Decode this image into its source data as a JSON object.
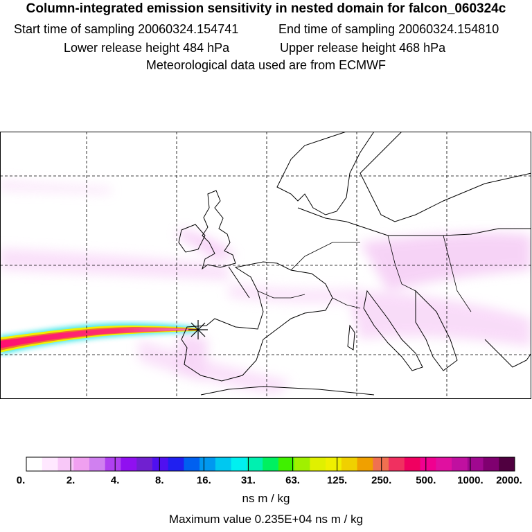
{
  "header": {
    "title": "Column-integrated emission sensitivity in nested domain for falcon_060324c",
    "start_label": "Start time of sampling 20060324.154741",
    "end_label": "End time of sampling 20060324.154810",
    "lower_label": "Lower release height  484 hPa",
    "upper_label": "Upper release height  468 hPa",
    "met_label": "Meteorological data used are from ECMWF"
  },
  "colorbar": {
    "ticks": [
      "0.",
      "2.",
      "4.",
      "8.",
      "16.",
      "31.",
      "63.",
      "125.",
      "250.",
      "500.",
      "1000.",
      "2000."
    ],
    "colors": [
      "#ffffff",
      "#ffe8ff",
      "#f8c8f8",
      "#f0a0f0",
      "#d080f0",
      "#b040f0",
      "#9010f0",
      "#7020d0",
      "#5010f0",
      "#2020f0",
      "#0060f0",
      "#0098f0",
      "#00c8f0",
      "#00f0f0",
      "#00f0b0",
      "#00f060",
      "#40f000",
      "#a0f000",
      "#e0f000",
      "#f0f000",
      "#f0d000",
      "#f0a000",
      "#f07050",
      "#f03060",
      "#f00060",
      "#f00090",
      "#e010a0",
      "#c010a0",
      "#a00890",
      "#800070",
      "#500040"
    ],
    "unit": "ns m / kg",
    "max_label": "Maximum value  0.235E+04 ns m / kg"
  },
  "map": {
    "receptor": "release-point-marker"
  }
}
